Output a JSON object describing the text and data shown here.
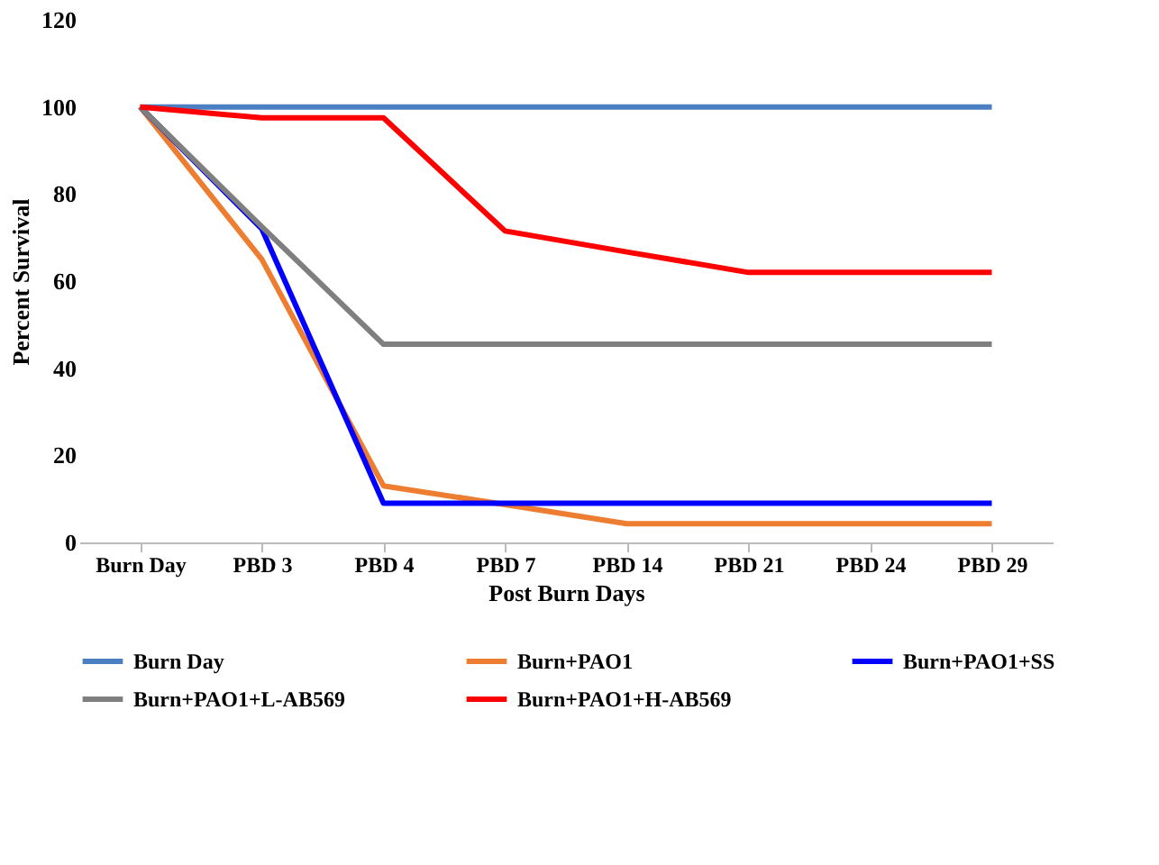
{
  "chart_data": {
    "type": "line",
    "xlabel": "Post Burn Days",
    "ylabel": "Percent Survival",
    "categories": [
      "Burn Day",
      "PBD 3",
      "PBD 4",
      "PBD 7",
      "PBD 14",
      "PBD 21",
      "PBD 24",
      "PBD 29"
    ],
    "series": [
      {
        "name": "Burn Day",
        "color": "#4a7fc1",
        "values": [
          100,
          100,
          100,
          100,
          100,
          100,
          100,
          100
        ]
      },
      {
        "name": "Burn+PAO1",
        "color": "#ed7d31",
        "values": [
          100,
          65,
          13,
          8.7,
          4.3,
          4.3,
          4.3,
          4.3
        ]
      },
      {
        "name": "Burn+PAO1+SS",
        "color": "#0000ff",
        "values": [
          100,
          72,
          9,
          9,
          9,
          9,
          9,
          9
        ]
      },
      {
        "name": "Burn+PAO1+L-AB569",
        "color": "#7f7f7f",
        "values": [
          100,
          72.5,
          45.5,
          45.5,
          45.5,
          45.5,
          45.5,
          45.5
        ]
      },
      {
        "name": "Burn+PAO1+H-AB569",
        "color": "#ff0000",
        "values": [
          100,
          97.5,
          97.5,
          71.5,
          66.7,
          62,
          62,
          62
        ]
      }
    ],
    "ylim": [
      0,
      120
    ],
    "yticks": [
      0,
      20,
      40,
      60,
      80,
      100,
      120
    ],
    "grid": false,
    "legend": "bottom",
    "marker": "none",
    "line_style": "solid"
  }
}
